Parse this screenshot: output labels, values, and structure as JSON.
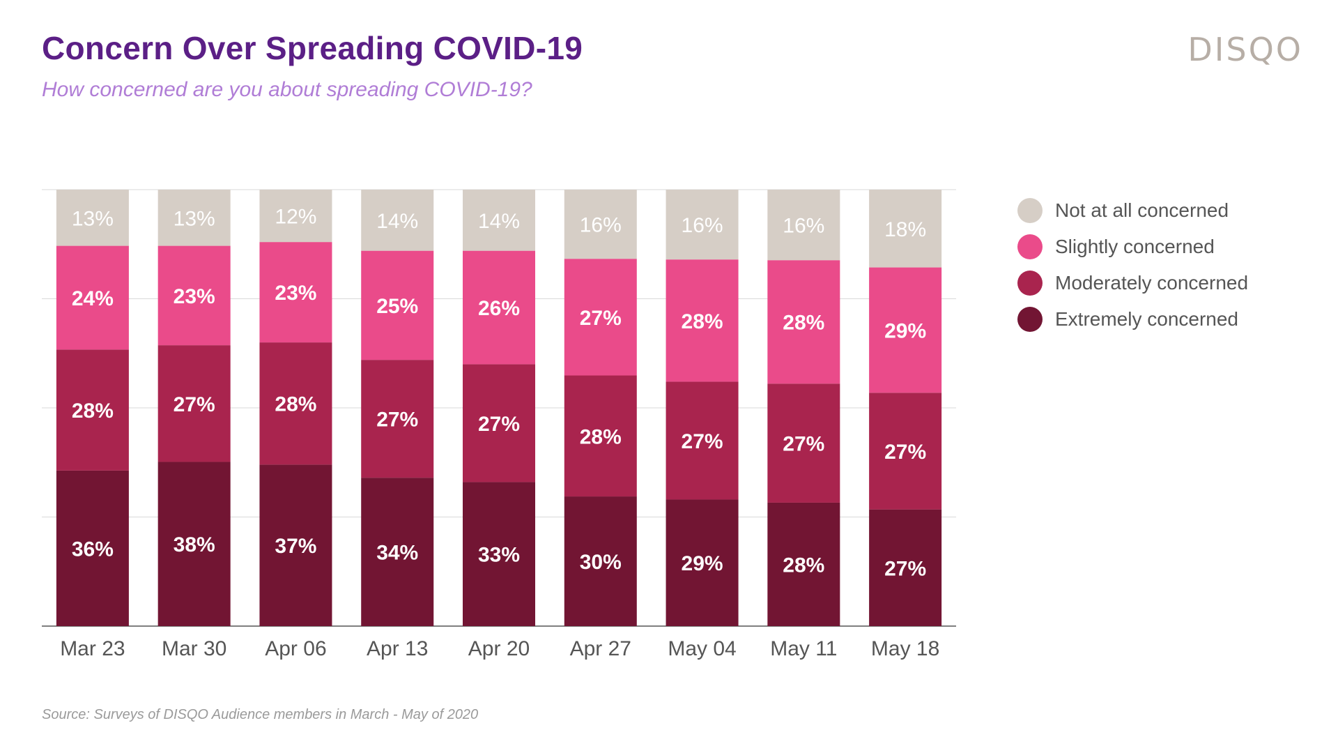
{
  "header": {
    "title": "Concern Over Spreading COVID-19",
    "subtitle": "How concerned are you about spreading COVID-19?",
    "brand": "DISQO"
  },
  "footer": {
    "source": "Source: Surveys of DISQO Audience members in March - May of 2020"
  },
  "colors": {
    "not_at_all": "#d6cec6",
    "slightly": "#ea4b8a",
    "moderately": "#a9244e",
    "extremely": "#721533",
    "label_light": "#ffffff"
  },
  "chart_data": {
    "type": "bar",
    "stacked": true,
    "title": "Concern Over Spreading COVID-19",
    "subtitle": "How concerned are you about spreading COVID-19?",
    "xlabel": "",
    "ylabel": "",
    "ylim": [
      0,
      100
    ],
    "grid": true,
    "legend_position": "right",
    "categories": [
      "Mar 23",
      "Mar 30",
      "Apr 06",
      "Apr 13",
      "Apr 20",
      "Apr 27",
      "May 04",
      "May 11",
      "May 18"
    ],
    "series": [
      {
        "name": "Extremely concerned",
        "key": "extremely",
        "values": [
          36,
          38,
          37,
          34,
          33,
          30,
          29,
          28,
          27
        ]
      },
      {
        "name": "Moderately concerned",
        "key": "moderately",
        "values": [
          28,
          27,
          28,
          27,
          27,
          28,
          27,
          27,
          27
        ]
      },
      {
        "name": "Slightly concerned",
        "key": "slightly",
        "values": [
          24,
          23,
          23,
          25,
          26,
          27,
          28,
          28,
          29
        ]
      },
      {
        "name": "Not at all concerned",
        "key": "not_at_all",
        "values": [
          13,
          13,
          12,
          14,
          14,
          16,
          16,
          16,
          18
        ]
      }
    ],
    "legend": [
      "Not at all concerned",
      "Slightly concerned",
      "Moderately concerned",
      "Extremely concerned"
    ]
  }
}
